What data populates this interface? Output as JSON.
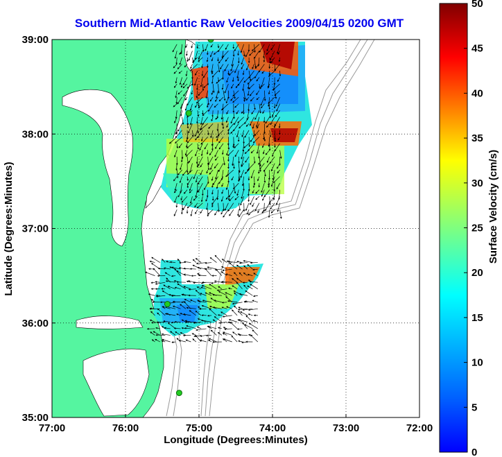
{
  "chart_data": {
    "type": "map",
    "title": "Southern Mid-Atlantic Raw Velocities 2009/04/15 0200 GMT",
    "xlabel": "Longitude (Degrees:Minutes)",
    "ylabel": "Latitude (Degrees:Minutes)",
    "xlim": [
      -77,
      -72
    ],
    "ylim": [
      35,
      39
    ],
    "x_ticks": [
      {
        "value": -77,
        "label": "77:00"
      },
      {
        "value": -76,
        "label": "76:00"
      },
      {
        "value": -75,
        "label": "75:00"
      },
      {
        "value": -74,
        "label": "74:00"
      },
      {
        "value": -73,
        "label": "73:00"
      },
      {
        "value": -72,
        "label": "72:00"
      }
    ],
    "y_ticks": [
      {
        "value": 39,
        "label": "39:00"
      },
      {
        "value": 38,
        "label": "38:00"
      },
      {
        "value": 37,
        "label": "37:00"
      },
      {
        "value": 36,
        "label": "36:00"
      },
      {
        "value": 35,
        "label": "35:00"
      }
    ],
    "grid": "dotted",
    "colorbar": {
      "label": "Surface Velocity (cm/s)",
      "range": [
        0,
        50
      ],
      "ticks": [
        "0",
        "5",
        "10",
        "15",
        "20",
        "25",
        "30",
        "35",
        "40",
        "45",
        "50"
      ],
      "colormap": "jet"
    },
    "colors": {
      "land": "#55f5a0",
      "water": "#ffffff",
      "title": "#0000ee",
      "bathymetry": "#999999",
      "station": "#22cc22"
    },
    "station_markers": [
      {
        "lon": -74.84,
        "lat": 39.0
      },
      {
        "lon": -75.14,
        "lat": 38.22
      },
      {
        "lon": -75.43,
        "lat": 36.2
      },
      {
        "lon": -75.27,
        "lat": 35.26
      }
    ],
    "velocity_regions": [
      {
        "name": "North",
        "lon_range": [
          -75.3,
          -73.9
        ],
        "lat_range": [
          37.2,
          39.0
        ],
        "speed_range_cm_s": [
          5,
          50
        ]
      },
      {
        "name": "South",
        "lon_range": [
          -75.6,
          -74.2
        ],
        "lat_range": [
          35.8,
          36.7
        ],
        "speed_range_cm_s": [
          5,
          35
        ]
      }
    ]
  }
}
